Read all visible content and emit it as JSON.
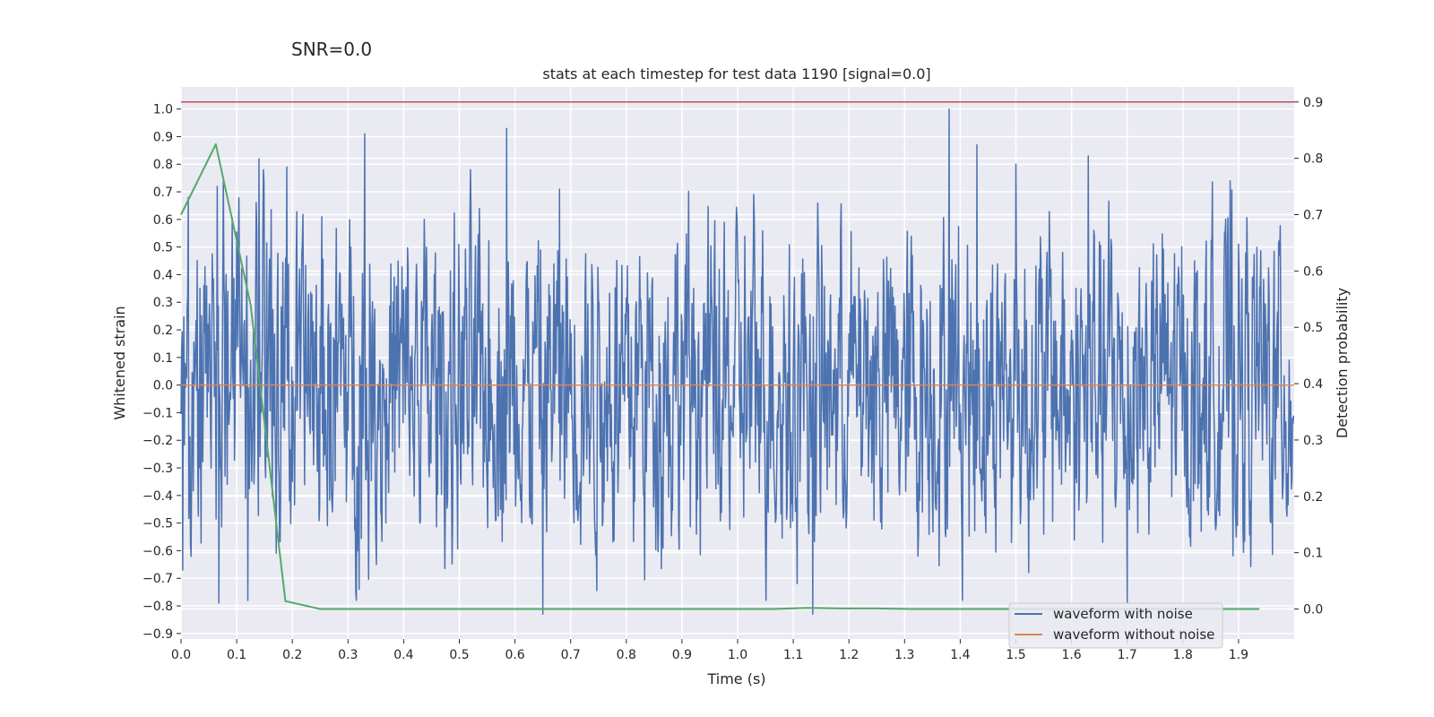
{
  "chart_data": {
    "type": "line",
    "suptitle": "SNR=0.0",
    "title": "stats at each timestep for test data 1190 [signal=0.0]",
    "xlabel": "Time (s)",
    "ylabel": "Whitened strain",
    "ylabel_right": "Detection probability",
    "xlim": [
      0.0,
      2.0
    ],
    "ylim": [
      -0.92,
      1.08
    ],
    "ylim_right": [
      -0.0533,
      0.9267
    ],
    "xticks": [
      0.0,
      0.1,
      0.2,
      0.3,
      0.4,
      0.5,
      0.6,
      0.7,
      0.8,
      0.9,
      1.0,
      1.1,
      1.2,
      1.3,
      1.4,
      1.5,
      1.6,
      1.7,
      1.8,
      1.9
    ],
    "xtick_labels": [
      "0.0",
      "0.1",
      "0.2",
      "0.3",
      "0.4",
      "0.5",
      "0.6",
      "0.7",
      "0.8",
      "0.9",
      "1.0",
      "1.1",
      "1.2",
      "1.3",
      "1.4",
      "1.5",
      "1.6",
      "1.7",
      "1.8",
      "1.9"
    ],
    "yticks": [
      1.0,
      0.9,
      0.8,
      0.7,
      0.6,
      0.5,
      0.4,
      0.3,
      0.2,
      0.1,
      0.0,
      -0.1,
      -0.2,
      -0.3,
      -0.4,
      -0.5,
      -0.6,
      -0.7,
      -0.8,
      -0.9
    ],
    "ytick_labels": [
      "1.0",
      "0.9",
      "0.8",
      "0.7",
      "0.6",
      "0.5",
      "0.4",
      "0.3",
      "0.2",
      "0.1",
      "0.0",
      "−0.1",
      "−0.2",
      "−0.3",
      "−0.4",
      "−0.5",
      "−0.6",
      "−0.7",
      "−0.8",
      "−0.9"
    ],
    "yticks_right": [
      0.9,
      0.8,
      0.7,
      0.6,
      0.5,
      0.4,
      0.3,
      0.2,
      0.1,
      0.0
    ],
    "ytick_labels_right": [
      "0.9",
      "0.8",
      "0.7",
      "0.6",
      "0.5",
      "0.4",
      "0.3",
      "0.2",
      "0.1",
      "0.0"
    ],
    "grid": true,
    "legend_position": "lower-right",
    "series": [
      {
        "name": "waveform with noise",
        "axis": "left",
        "color": "#4c72b0",
        "note_noise": "dense white-noise trace, roughly uniform in [-0.8, 0.9], 2 s long",
        "peaks": [
          {
            "x": 0.013,
            "y": 0.68
          },
          {
            "x": 0.003,
            "y": -0.67
          },
          {
            "x": 0.065,
            "y": 0.72
          },
          {
            "x": 0.068,
            "y": -0.79
          },
          {
            "x": 0.14,
            "y": 0.82
          },
          {
            "x": 0.12,
            "y": -0.78
          },
          {
            "x": 0.19,
            "y": 0.79
          },
          {
            "x": 0.33,
            "y": 0.91
          },
          {
            "x": 0.32,
            "y": -0.74
          },
          {
            "x": 0.585,
            "y": 0.93
          },
          {
            "x": 0.65,
            "y": -0.83
          },
          {
            "x": 0.68,
            "y": 0.71
          },
          {
            "x": 1.135,
            "y": -0.83
          },
          {
            "x": 1.38,
            "y": 1.0
          },
          {
            "x": 1.43,
            "y": 0.87
          },
          {
            "x": 1.5,
            "y": 0.8
          },
          {
            "x": 1.63,
            "y": 0.83
          },
          {
            "x": 1.7,
            "y": -0.79
          },
          {
            "x": 1.885,
            "y": 0.74
          }
        ]
      },
      {
        "name": "waveform without noise",
        "axis": "left",
        "color": "#dd8452",
        "x": [
          0.0,
          2.0
        ],
        "y": [
          0.0,
          0.0
        ]
      },
      {
        "name": "",
        "axis": "right",
        "color": "#55a868",
        "x": [
          0.0,
          0.0625,
          0.125,
          0.1875,
          0.25,
          0.3125,
          0.375,
          0.4375,
          0.5,
          0.5625,
          0.625,
          0.6875,
          0.75,
          0.8125,
          0.875,
          0.9375,
          1.0,
          1.0625,
          1.125,
          1.1875,
          1.25,
          1.3125,
          1.375,
          1.4375,
          1.5,
          1.5625,
          1.625,
          1.6875,
          1.75,
          1.8125,
          1.875,
          1.9375
        ],
        "y": [
          0.7,
          0.825,
          0.54,
          0.014,
          0.0,
          0.0,
          0.0,
          0.0,
          0.0,
          0.0,
          0.0,
          0.0,
          0.0,
          0.0,
          0.0,
          0.0,
          0.0,
          0.0,
          0.002,
          0.001,
          0.001,
          0.0,
          0.0,
          0.0,
          0.0,
          0.0,
          0.0,
          0.0,
          0.0,
          0.0,
          0.0,
          0.0
        ]
      }
    ],
    "threshold": {
      "axis": "right",
      "y": 0.9,
      "color": "#c44e52"
    }
  }
}
